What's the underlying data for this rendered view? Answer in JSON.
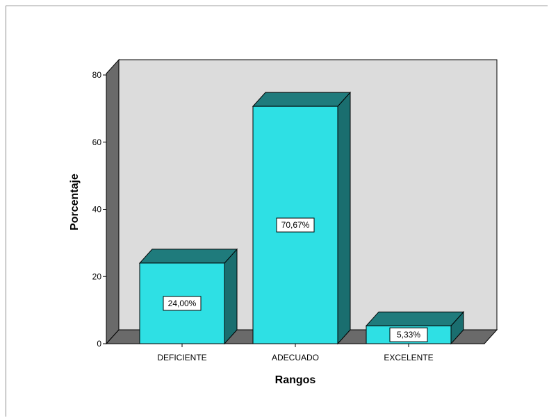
{
  "chart_data": {
    "type": "bar",
    "categories": [
      "DEFICIENTE",
      "ADECUADO",
      "EXCELENTE"
    ],
    "values": [
      24.0,
      70.67,
      5.33
    ],
    "data_labels": [
      "24,00%",
      "70,67%",
      "5,33%"
    ],
    "xlabel": "Rangos",
    "ylabel": "Porcentaje",
    "ylim": [
      0,
      80
    ],
    "yticks": [
      0,
      20,
      40,
      60,
      80
    ],
    "style": "3d",
    "legend": "none",
    "grid": false,
    "colors": {
      "bar_front": "#2ee0e4",
      "bar_top": "#1f7b7c",
      "bar_side": "#1a6e6f",
      "back_wall": "#dcdcdc",
      "left_wall": "#6a6a6a",
      "floor": "#6a6a6a",
      "edge": "#000000"
    }
  }
}
